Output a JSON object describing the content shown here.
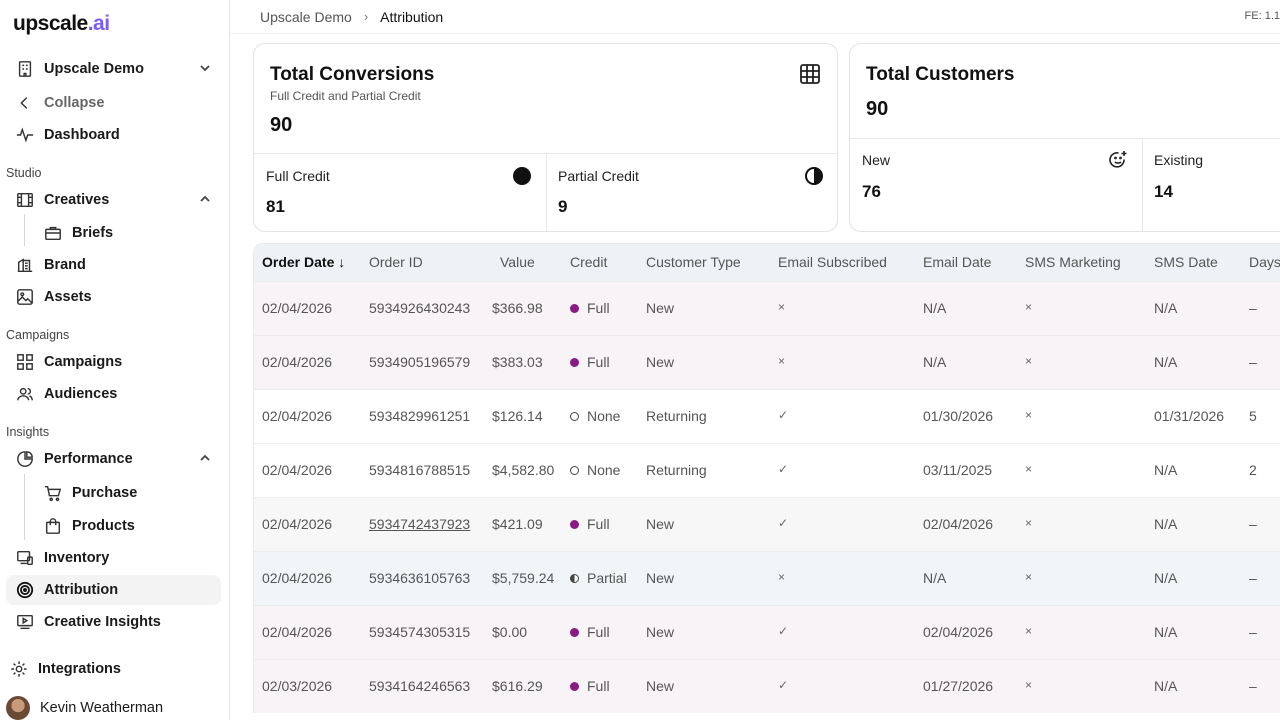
{
  "brand": {
    "logo_main": "upscale",
    "logo_accent": ".ai"
  },
  "sidebar": {
    "workspace": "Upscale Demo",
    "collapse": "Collapse",
    "dashboard": "Dashboard",
    "sections": {
      "studio": "Studio",
      "campaigns": "Campaigns",
      "insights": "Insights"
    },
    "creatives": "Creatives",
    "briefs": "Briefs",
    "brand": "Brand",
    "assets": "Assets",
    "campaigns": "Campaigns",
    "audiences": "Audiences",
    "performance": "Performance",
    "purchase": "Purchase",
    "products": "Products",
    "inventory": "Inventory",
    "attribution": "Attribution",
    "creative_insights": "Creative Insights",
    "integrations": "Integrations",
    "user_name": "Kevin Weatherman"
  },
  "header": {
    "crumb_root": "Upscale Demo",
    "crumb_current": "Attribution",
    "fe_label": "FE: 1.1"
  },
  "conversions": {
    "title": "Total Conversions",
    "subtitle": "Full Credit and Partial Credit",
    "total": "90",
    "full_label": "Full Credit",
    "full_value": "81",
    "partial_label": "Partial Credit",
    "partial_value": "9"
  },
  "customers": {
    "title": "Total Customers",
    "total": "90",
    "new_label": "New",
    "new_value": "76",
    "existing_label": "Existing",
    "existing_value": "14"
  },
  "table": {
    "headers": [
      "Order Date",
      "Order ID",
      "Value",
      "Credit",
      "Customer Type",
      "Email Subscribed",
      "Email Date",
      "SMS Marketing",
      "SMS Date",
      "Days"
    ],
    "rows": [
      {
        "date": "02/04/2026",
        "id": "5934926430243",
        "value": "$366.98",
        "credit": "Full",
        "credit_kind": "full",
        "ctype": "New",
        "email_sub": "×",
        "email_date": "N/A",
        "sms": "×",
        "sms_date": "N/A",
        "days": "–",
        "bg": "#f8f3f6"
      },
      {
        "date": "02/04/2026",
        "id": "5934905196579",
        "value": "$383.03",
        "credit": "Full",
        "credit_kind": "full",
        "ctype": "New",
        "email_sub": "×",
        "email_date": "N/A",
        "sms": "×",
        "sms_date": "N/A",
        "days": "–",
        "bg": "#f8f3f6"
      },
      {
        "date": "02/04/2026",
        "id": "5934829961251",
        "value": "$126.14",
        "credit": "None",
        "credit_kind": "none",
        "ctype": "Returning",
        "email_sub": "✓",
        "email_date": "01/30/2026",
        "sms": "×",
        "sms_date": "01/31/2026",
        "days": "5",
        "bg": "#ffffff"
      },
      {
        "date": "02/04/2026",
        "id": "5934816788515",
        "value": "$4,582.80",
        "credit": "None",
        "credit_kind": "none",
        "ctype": "Returning",
        "email_sub": "✓",
        "email_date": "03/11/2025",
        "sms": "×",
        "sms_date": "N/A",
        "days": "2",
        "bg": "#ffffff"
      },
      {
        "date": "02/04/2026",
        "id": "5934742437923",
        "value": "$421.09",
        "credit": "Full",
        "credit_kind": "full",
        "ctype": "New",
        "email_sub": "✓",
        "email_date": "02/04/2026",
        "sms": "×",
        "sms_date": "N/A",
        "days": "–",
        "bg": "#f7f7f7",
        "link": true
      },
      {
        "date": "02/04/2026",
        "id": "5934636105763",
        "value": "$5,759.24",
        "credit": "Partial",
        "credit_kind": "partial",
        "ctype": "New",
        "email_sub": "×",
        "email_date": "N/A",
        "sms": "×",
        "sms_date": "N/A",
        "days": "–",
        "bg": "#f1f5f8"
      },
      {
        "date": "02/04/2026",
        "id": "5934574305315",
        "value": "$0.00",
        "credit": "Full",
        "credit_kind": "full",
        "ctype": "New",
        "email_sub": "✓",
        "email_date": "02/04/2026",
        "sms": "×",
        "sms_date": "N/A",
        "days": "–",
        "bg": "#f8f3f6"
      },
      {
        "date": "02/03/2026",
        "id": "5934164246563",
        "value": "$616.29",
        "credit": "Full",
        "credit_kind": "full",
        "ctype": "New",
        "email_sub": "✓",
        "email_date": "01/27/2026",
        "sms": "×",
        "sms_date": "N/A",
        "days": "–",
        "bg": "#f8f3f6"
      }
    ]
  }
}
